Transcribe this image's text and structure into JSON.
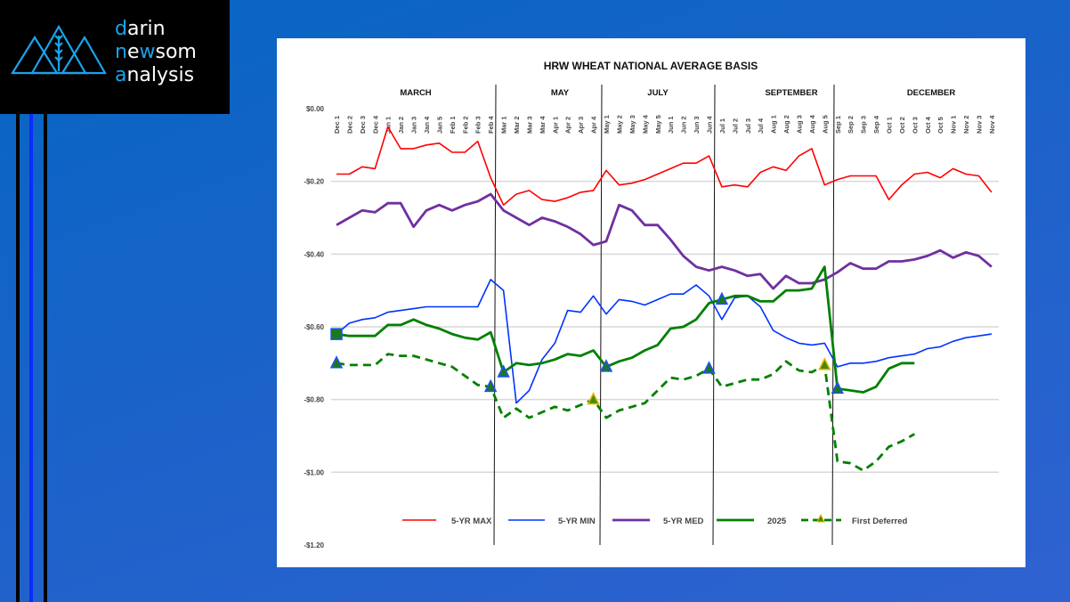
{
  "logo": {
    "line1_first": "d",
    "line1_rest": "arin",
    "line2_first": "n",
    "line2_mid1": "e",
    "line2_w": "w",
    "line2_rest": "som",
    "line3_first": "a",
    "line3_rest": "nalysis"
  },
  "colors": {
    "max": "#ff0000",
    "min": "#0033ff",
    "med": "#7030a0",
    "y2025": "#008000",
    "deferred": "#008000",
    "accent": "#1aa3ec"
  },
  "chart_data": {
    "type": "line",
    "title": "HRW WHEAT NATIONAL AVERAGE BASIS",
    "sections": [
      "MARCH",
      "MAY",
      "JULY",
      "SEPTEMBER",
      "DECEMBER"
    ],
    "yticks": [
      "$0.00",
      "-$0.20",
      "-$0.40",
      "-$0.60",
      "-$0.80",
      "-$1.00",
      "-$1.20"
    ],
    "ylim": [
      -1.2,
      0
    ],
    "categories": [
      "Dec 1",
      "Dec 2",
      "Dec 3",
      "Dec 4",
      "Jan 1",
      "Jan 2",
      "Jan 3",
      "Jan 4",
      "Jan 5",
      "Feb 1",
      "Feb 2",
      "Feb 3",
      "Feb 4",
      "Mar 1",
      "Mar 2",
      "Mar 3",
      "Mar 4",
      "Apr 1",
      "Apr 2",
      "Apr 3",
      "Apr 4",
      "May 1",
      "May 2",
      "May 3",
      "May 4",
      "May 5",
      "Jun 1",
      "Jun 2",
      "Jun 3",
      "Jun 4",
      "Jul 1",
      "Jul 2",
      "Jul 3",
      "Jul 4",
      "Aug 1",
      "Aug 2",
      "Aug 3",
      "Aug 4",
      "Aug 5",
      "Sep 1",
      "Sep 2",
      "Sep 3",
      "Sep 4",
      "Oct 1",
      "Oct 2",
      "Oct 3",
      "Oct 4",
      "Oct 5",
      "Nov 1",
      "Nov 2",
      "Nov 3",
      "Nov 4"
    ],
    "series": [
      {
        "name": "5-YR MAX",
        "values": [
          -0.18,
          -0.18,
          -0.16,
          -0.165,
          -0.05,
          -0.11,
          -0.11,
          -0.1,
          -0.095,
          -0.12,
          -0.12,
          -0.09,
          -0.19,
          -0.265,
          -0.235,
          -0.225,
          -0.25,
          -0.255,
          -0.245,
          -0.23,
          -0.225,
          -0.17,
          -0.21,
          -0.205,
          -0.195,
          -0.18,
          -0.165,
          -0.15,
          -0.15,
          -0.13,
          -0.215,
          -0.21,
          -0.215,
          -0.175,
          -0.16,
          -0.17,
          -0.13,
          -0.11,
          -0.21,
          -0.195,
          -0.185,
          -0.185,
          -0.185,
          -0.25,
          -0.21,
          -0.18,
          -0.175,
          -0.19,
          -0.165,
          -0.18,
          -0.185,
          -0.23
        ]
      },
      {
        "name": "5-YR MIN",
        "values": [
          -0.62,
          -0.59,
          -0.58,
          -0.575,
          -0.56,
          -0.555,
          -0.55,
          -0.545,
          -0.545,
          -0.545,
          -0.545,
          -0.545,
          -0.47,
          -0.5,
          -0.81,
          -0.775,
          -0.69,
          -0.645,
          -0.555,
          -0.56,
          -0.515,
          -0.565,
          -0.525,
          -0.53,
          -0.54,
          -0.525,
          -0.51,
          -0.51,
          -0.485,
          -0.515,
          -0.58,
          -0.52,
          -0.515,
          -0.545,
          -0.61,
          -0.63,
          -0.645,
          -0.65,
          -0.645,
          -0.71,
          -0.7,
          -0.7,
          -0.695,
          -0.685,
          -0.68,
          -0.675,
          -0.66,
          -0.655,
          -0.64,
          -0.63,
          -0.625,
          -0.62
        ]
      },
      {
        "name": "5-YR MED",
        "values": [
          -0.32,
          -0.3,
          -0.28,
          -0.285,
          -0.26,
          -0.26,
          -0.325,
          -0.28,
          -0.265,
          -0.28,
          -0.265,
          -0.255,
          -0.235,
          -0.28,
          -0.3,
          -0.32,
          -0.3,
          -0.31,
          -0.325,
          -0.345,
          -0.375,
          -0.365,
          -0.265,
          -0.28,
          -0.32,
          -0.32,
          -0.36,
          -0.405,
          -0.435,
          -0.445,
          -0.435,
          -0.445,
          -0.46,
          -0.455,
          -0.495,
          -0.46,
          -0.48,
          -0.48,
          -0.47,
          -0.45,
          -0.425,
          -0.44,
          -0.44,
          -0.42,
          -0.42,
          -0.415,
          -0.405,
          -0.39,
          -0.41,
          -0.395,
          -0.405,
          -0.435
        ]
      },
      {
        "name": "2025",
        "values": [
          -0.62,
          -0.625,
          -0.625,
          -0.625,
          -0.595,
          -0.595,
          -0.58,
          -0.595,
          -0.605,
          -0.62,
          -0.63,
          -0.635,
          -0.615,
          -0.725,
          -0.7,
          -0.705,
          -0.7,
          -0.69,
          -0.675,
          -0.68,
          -0.665,
          -0.71,
          -0.695,
          -0.685,
          -0.665,
          -0.65,
          -0.605,
          -0.6,
          -0.58,
          -0.535,
          -0.525,
          -0.515,
          -0.515,
          -0.53,
          -0.53,
          -0.5,
          -0.5,
          -0.495,
          -0.435,
          -0.77,
          -0.775,
          -0.78,
          -0.765,
          -0.715,
          -0.7,
          -0.7,
          null,
          null,
          null,
          null,
          null,
          null
        ],
        "markers": [
          {
            "index": 0,
            "shape": "square"
          },
          {
            "index": 13,
            "shape": "triangle"
          },
          {
            "index": 21,
            "shape": "triangle"
          },
          {
            "index": 30,
            "shape": "triangle"
          },
          {
            "index": 39,
            "shape": "triangle"
          }
        ]
      },
      {
        "name": "First Deferred",
        "values": [
          -0.7,
          -0.705,
          -0.705,
          -0.705,
          -0.675,
          -0.68,
          -0.68,
          -0.69,
          -0.7,
          -0.71,
          -0.735,
          -0.76,
          -0.765,
          -0.85,
          -0.825,
          -0.85,
          -0.835,
          -0.82,
          -0.83,
          -0.815,
          -0.8,
          -0.85,
          -0.83,
          -0.82,
          -0.81,
          -0.775,
          -0.74,
          -0.745,
          -0.735,
          -0.715,
          -0.765,
          -0.755,
          -0.745,
          -0.745,
          -0.73,
          -0.695,
          -0.72,
          -0.725,
          -0.705,
          -0.97,
          -0.975,
          -0.995,
          -0.97,
          -0.93,
          -0.915,
          -0.895,
          null,
          null,
          null,
          null,
          null,
          null
        ],
        "markers": [
          {
            "index": 0,
            "shape": "triangle"
          },
          {
            "index": 12,
            "shape": "triangle"
          },
          {
            "index": 20,
            "shape": "triangle-gold"
          },
          {
            "index": 29,
            "shape": "triangle"
          },
          {
            "index": 38,
            "shape": "triangle-gold"
          }
        ]
      }
    ],
    "legend": [
      "5-YR MAX",
      "5-YR MIN",
      "5-YR MED",
      "2025",
      "First Deferred"
    ],
    "legend_position": "bottom",
    "grid": true
  }
}
